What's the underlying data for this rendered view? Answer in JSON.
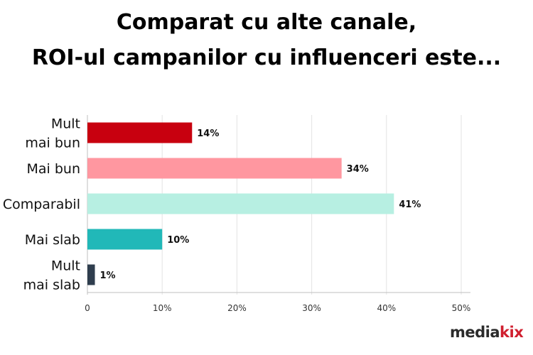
{
  "title_line1": "Comparat cu alte canale,",
  "title_line2": "ROI-ul campanilor cu influenceri este...",
  "logo": {
    "part1": "media",
    "part2": "kix"
  },
  "chart_data": {
    "type": "bar",
    "orientation": "horizontal",
    "categories": [
      [
        "Mult",
        "mai bun"
      ],
      [
        "Mai bun"
      ],
      [
        "Comparabil"
      ],
      [
        "Mai slab"
      ],
      [
        "Mult",
        "mai slab"
      ]
    ],
    "values": [
      14,
      34,
      41,
      10,
      1
    ],
    "value_labels": [
      "14%",
      "34%",
      "41%",
      "10%",
      "1%"
    ],
    "colors": [
      "#c8000f",
      "#ff97a0",
      "#b7efe2",
      "#21b8b8",
      "#2f3e4e"
    ],
    "xlim": [
      0,
      50
    ],
    "x_ticks": [
      0,
      10,
      20,
      30,
      40,
      50
    ],
    "x_tick_labels": [
      "0",
      "10%",
      "20%",
      "30%",
      "40%",
      "50%"
    ],
    "grid": true
  }
}
